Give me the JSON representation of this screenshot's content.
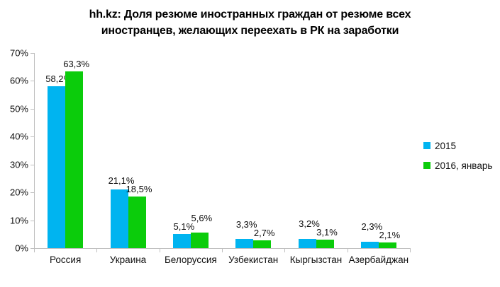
{
  "title_lines": [
    "hh.kz: Доля резюме иностранных граждан от резюме всех",
    "иностранцев, желающих переехать в РК на заработки"
  ],
  "colors": {
    "series_2015": "#00B4F0",
    "series_2016_january": "#0BCC0B",
    "axis": "#BFBFBF",
    "text": "#000000"
  },
  "legend": {
    "items": [
      {
        "label": "2015",
        "color": "#00B4F0"
      },
      {
        "label": "2016, январь",
        "color": "#0BCC0B"
      }
    ]
  },
  "chart_data": {
    "type": "bar",
    "title": "hh.kz: Доля резюме иностранных граждан от резюме всех иностранцев, желающих переехать в РК на заработки",
    "categories": [
      "Россия",
      "Украина",
      "Белоруссия",
      "Узбекистан",
      "Кыргызстан",
      "Азербайджан"
    ],
    "series": [
      {
        "name": "2015",
        "color": "#00B4F0",
        "values": [
          58.2,
          21.1,
          5.1,
          3.3,
          3.2,
          2.3
        ],
        "labels": [
          "58,2%",
          "21,1%",
          "5,1%",
          "3,3%",
          "3,2%",
          "2,3%"
        ]
      },
      {
        "name": "2016, январь",
        "color": "#0BCC0B",
        "values": [
          63.3,
          18.5,
          5.6,
          2.7,
          3.1,
          2.1
        ],
        "labels": [
          "63,3%",
          "18,5%",
          "5,6%",
          "2,7%",
          "3,1%",
          "2,1%"
        ]
      }
    ],
    "y_ticks": [
      "0%",
      "10%",
      "20%",
      "30%",
      "40%",
      "50%",
      "60%",
      "70%"
    ],
    "ylim": [
      0,
      70
    ],
    "grid": false,
    "legend_position": "right",
    "data_labels": true
  }
}
